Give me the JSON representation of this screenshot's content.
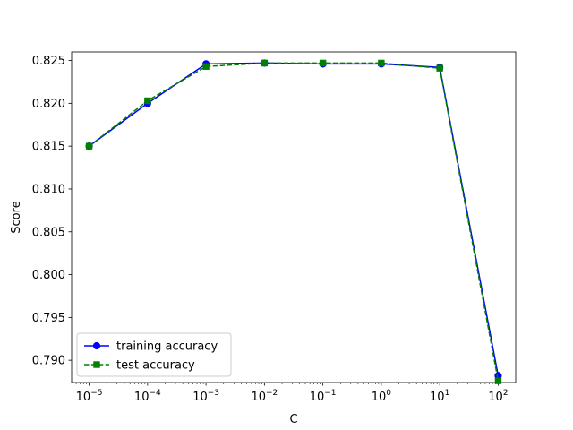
{
  "chart_data": {
    "type": "line",
    "xlabel": "C",
    "ylabel": "Score",
    "x_scale": "log",
    "x": [
      1e-05,
      0.0001,
      0.001,
      0.01,
      0.1,
      1,
      10,
      100
    ],
    "x_tick_labels": [
      {
        "base": "10",
        "exp": "−5"
      },
      {
        "base": "10",
        "exp": "−4"
      },
      {
        "base": "10",
        "exp": "−3"
      },
      {
        "base": "10",
        "exp": "−2"
      },
      {
        "base": "10",
        "exp": "−1"
      },
      {
        "base": "10",
        "exp": "0"
      },
      {
        "base": "10",
        "exp": "1"
      },
      {
        "base": "10",
        "exp": "2"
      }
    ],
    "ylim": [
      0.7874,
      0.826
    ],
    "y_ticks": [
      0.79,
      0.795,
      0.8,
      0.805,
      0.81,
      0.815,
      0.82,
      0.825
    ],
    "y_tick_labels": [
      "0.790",
      "0.795",
      "0.800",
      "0.805",
      "0.810",
      "0.815",
      "0.820",
      "0.825"
    ],
    "grid": false,
    "legend_position": "lower-left",
    "series": [
      {
        "name": "training accuracy",
        "color": "#0000ff",
        "linestyle": "solid",
        "marker": "circle",
        "values": [
          0.815,
          0.82,
          0.8246,
          0.8247,
          0.8246,
          0.8246,
          0.8242,
          0.7882
        ]
      },
      {
        "name": "test accuracy",
        "color": "#008000",
        "linestyle": "dashed",
        "marker": "square",
        "values": [
          0.815,
          0.8203,
          0.8243,
          0.8247,
          0.8247,
          0.8247,
          0.8241,
          0.7876
        ]
      }
    ]
  }
}
